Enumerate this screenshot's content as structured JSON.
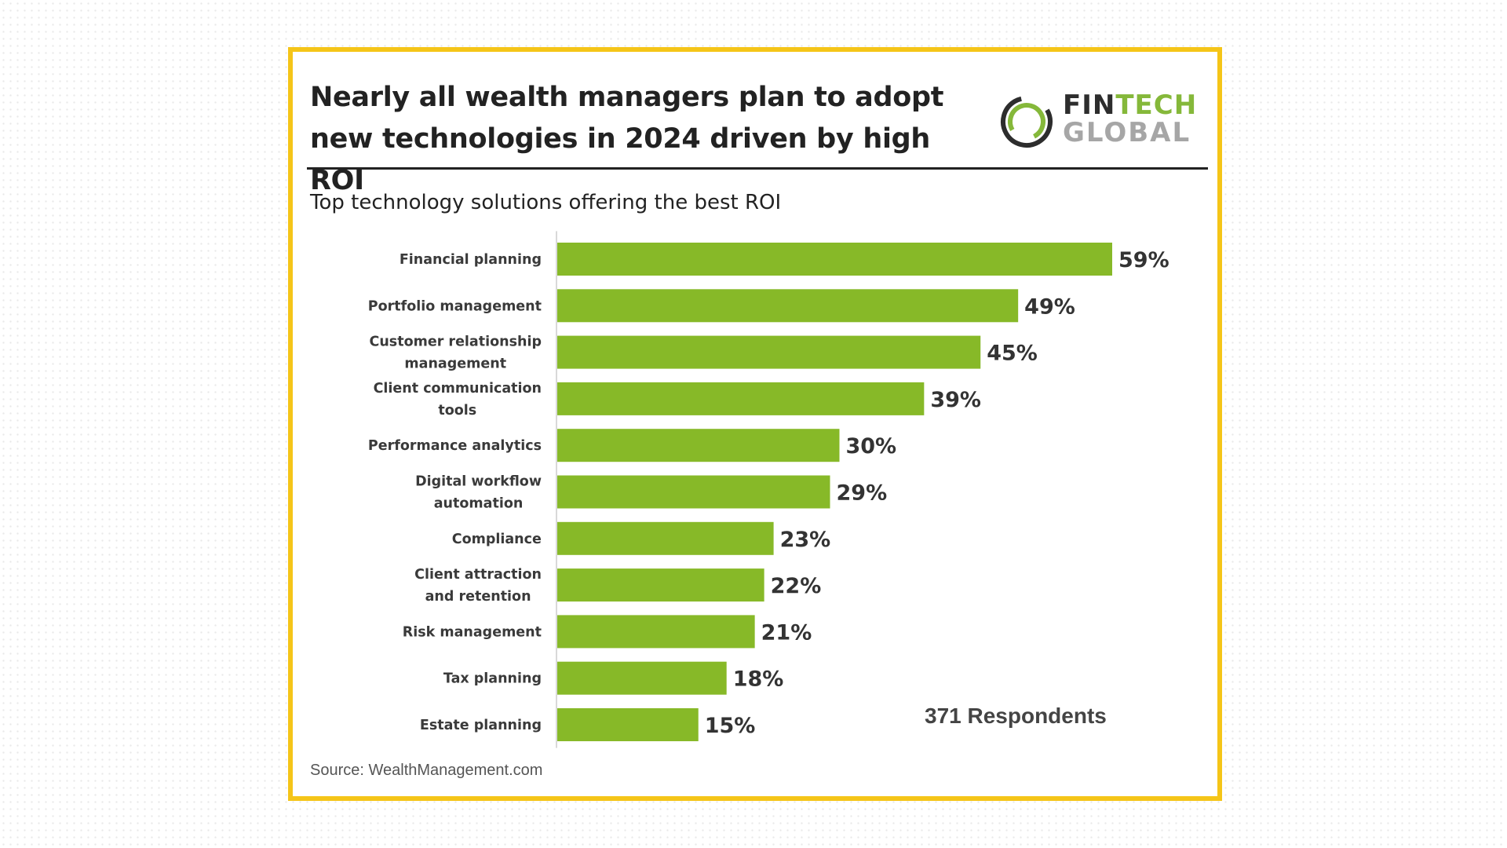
{
  "title": "Nearly all wealth managers plan to adopt new technologies in 2024 driven by high ROI",
  "logo": {
    "fin": "FIN",
    "tech": "TECH",
    "global": "GLOBAL"
  },
  "subtitle": "Top technology solutions offering the best ROI",
  "respondents": "371 Respondents",
  "source": "Source: WealthManagement.com",
  "colors": {
    "bar": "#87b928",
    "frame": "#f5c518",
    "logo_ring_green": "#85b83a",
    "logo_ring_dark": "#2d2d2d"
  },
  "chart_data": {
    "type": "bar",
    "orientation": "horizontal",
    "title": "Top technology solutions offering the best ROI",
    "unit": "%",
    "categories": [
      [
        "Financial planning"
      ],
      [
        "Portfolio management"
      ],
      [
        "Customer relationship",
        "management"
      ],
      [
        "Client communication",
        "tools"
      ],
      [
        "Performance analytics"
      ],
      [
        "Digital workflow",
        "automation"
      ],
      [
        "Compliance"
      ],
      [
        "Client attraction",
        "and retention"
      ],
      [
        "Risk management"
      ],
      [
        "Tax planning"
      ],
      [
        "Estate planning"
      ]
    ],
    "values": [
      59,
      49,
      45,
      39,
      30,
      29,
      23,
      22,
      21,
      18,
      15
    ],
    "value_labels": [
      "59%",
      "49%",
      "45%",
      "39%",
      "30%",
      "29%",
      "23%",
      "22%",
      "21%",
      "18%",
      "15%"
    ],
    "xlim": [
      0,
      59
    ],
    "grid": false,
    "legend": "none"
  }
}
